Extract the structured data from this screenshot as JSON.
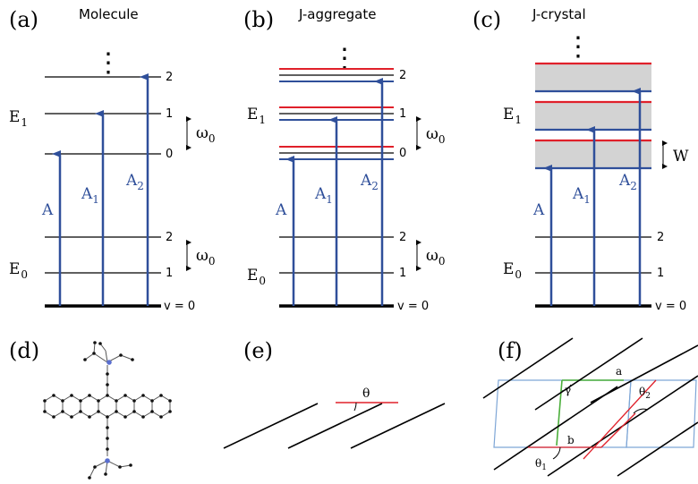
{
  "panels": {
    "a": {
      "letter": "(a)",
      "title": "Molecule"
    },
    "b": {
      "letter": "(b)",
      "title": "J-aggregate"
    },
    "c": {
      "letter": "(c)",
      "title": "J-crystal"
    },
    "d": {
      "letter": "(d)"
    },
    "e": {
      "letter": "(e)"
    },
    "f": {
      "letter": "(f)"
    }
  },
  "levels": {
    "excited": [
      "2",
      "1",
      "0"
    ],
    "ground": [
      "2",
      "1",
      "v = 0"
    ],
    "dots": "⋮"
  },
  "energy": {
    "e1_main": "E",
    "e1_sub": "1",
    "e0_main": "E",
    "e0_sub": "0",
    "omega_main": "ω",
    "omega_sub": "0",
    "width_label": "W"
  },
  "transitions": {
    "a0": "A",
    "a1_main": "A",
    "a1_sub": "1",
    "a2_main": "A",
    "a2_sub": "2"
  },
  "angles": {
    "theta": "θ",
    "gamma": "γ",
    "theta1_main": "θ",
    "theta1_sub": "1",
    "theta2_main": "θ",
    "theta2_sub": "2",
    "axis_a": "a",
    "axis_b": "b"
  },
  "colors": {
    "blue": "#2f4f9a",
    "red": "#e0202a",
    "band_gray": "#d3d3d3",
    "cell": "#7ea6d6",
    "green": "#4caf3c"
  }
}
